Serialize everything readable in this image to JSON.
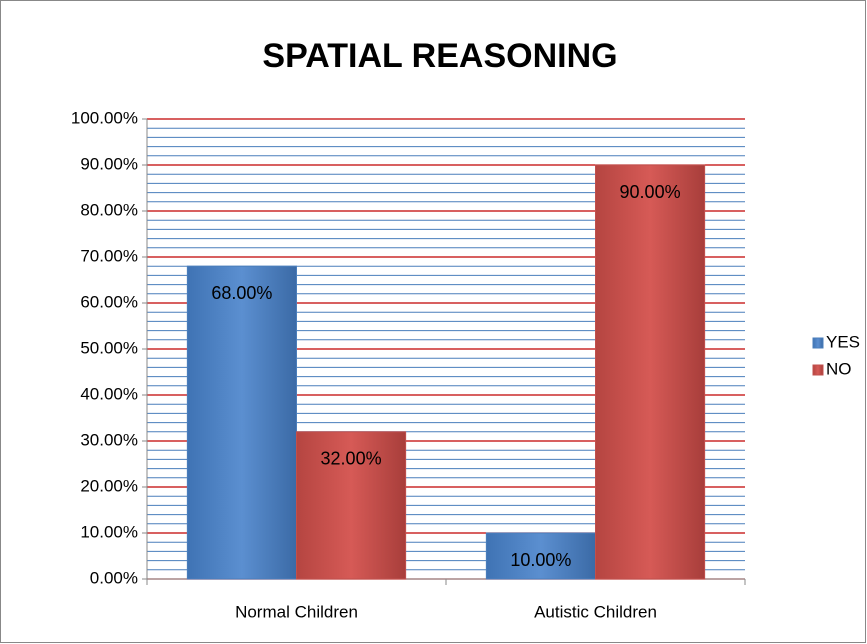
{
  "chart_data": {
    "type": "bar",
    "title": "SPATIAL REASONING",
    "categories": [
      "Normal Children",
      "Autistic Children"
    ],
    "series": [
      {
        "name": "YES",
        "color": "#4a7ebb",
        "values": [
          68,
          10
        ],
        "value_labels": [
          "68.00%",
          "10.00%"
        ]
      },
      {
        "name": "NO",
        "color": "#c0504d",
        "values": [
          32,
          90
        ],
        "value_labels": [
          "32.00%",
          "90.00%"
        ]
      }
    ],
    "ylim": [
      0,
      100
    ],
    "yticks": [
      {
        "value": 0,
        "label": "0.00%"
      },
      {
        "value": 10,
        "label": "10.00%"
      },
      {
        "value": 20,
        "label": "20.00%"
      },
      {
        "value": 30,
        "label": "30.00%"
      },
      {
        "value": 40,
        "label": "40.00%"
      },
      {
        "value": 50,
        "label": "50.00%"
      },
      {
        "value": 60,
        "label": "60.00%"
      },
      {
        "value": 70,
        "label": "70.00%"
      },
      {
        "value": 80,
        "label": "80.00%"
      },
      {
        "value": 90,
        "label": "90.00%"
      },
      {
        "value": 100,
        "label": "100.00%"
      }
    ],
    "grid": true,
    "grid_color": "#c00000",
    "minor_grid_step": 2,
    "minor_grid_color": "#4a7ebb",
    "legend": "right"
  }
}
